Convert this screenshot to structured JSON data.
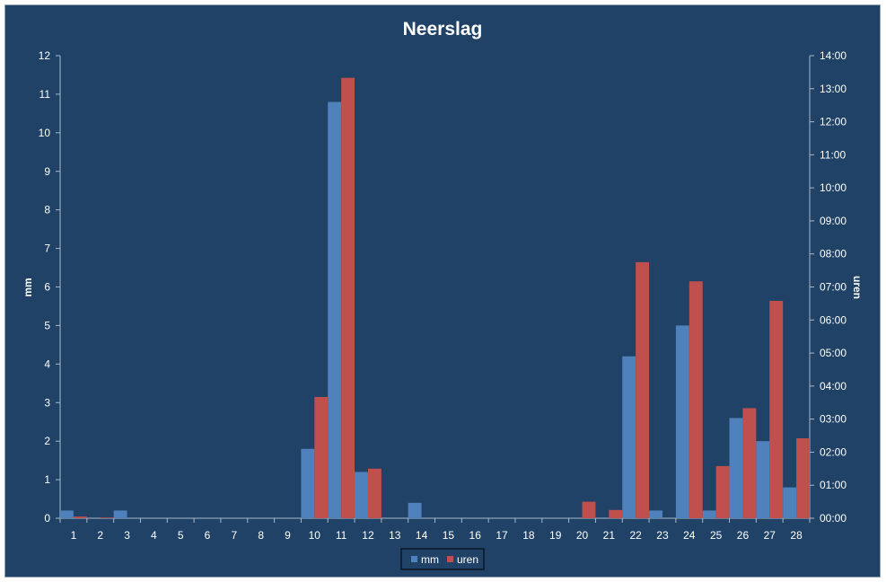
{
  "chart_data": {
    "type": "bar",
    "title": "Neerslag",
    "background": "#1f4266",
    "y_left": {
      "label": "mm",
      "range": [
        0,
        12
      ],
      "ticks": [
        "0",
        "1",
        "2",
        "3",
        "4",
        "5",
        "6",
        "7",
        "8",
        "9",
        "10",
        "11",
        "12"
      ]
    },
    "y_right": {
      "label": "uren",
      "range_hours": [
        0,
        14
      ],
      "ticks": [
        "00:00",
        "01:00",
        "02:00",
        "03:00",
        "04:00",
        "05:00",
        "06:00",
        "07:00",
        "08:00",
        "09:00",
        "10:00",
        "11:00",
        "12:00",
        "13:00",
        "14:00"
      ]
    },
    "categories": [
      "1",
      "2",
      "3",
      "4",
      "5",
      "6",
      "7",
      "8",
      "9",
      "10",
      "11",
      "12",
      "13",
      "14",
      "15",
      "16",
      "17",
      "18",
      "19",
      "20",
      "21",
      "22",
      "23",
      "24",
      "25",
      "26",
      "27",
      "28"
    ],
    "series": [
      {
        "name": "mm",
        "axis": "left",
        "color": "#4f81bd",
        "values": [
          0.2,
          0,
          0.2,
          0,
          0,
          0,
          0,
          0,
          0,
          1.8,
          10.8,
          1.2,
          0,
          0.4,
          0,
          0,
          0,
          0,
          0,
          0,
          0,
          4.2,
          0.2,
          5.0,
          0.2,
          2.6,
          2.0,
          0.8
        ]
      },
      {
        "name": "uren",
        "axis": "right",
        "color": "#c0504d",
        "values": [
          0.05,
          0.02,
          0,
          0,
          0,
          0,
          0,
          0,
          0,
          3.67,
          13.33,
          1.5,
          0,
          0,
          0,
          0,
          0,
          0,
          0,
          0.5,
          0.25,
          7.75,
          0,
          7.17,
          1.58,
          3.33,
          6.58,
          2.42
        ]
      }
    ],
    "legend": {
      "position": "bottom",
      "entries": [
        "mm",
        "uren"
      ]
    }
  }
}
